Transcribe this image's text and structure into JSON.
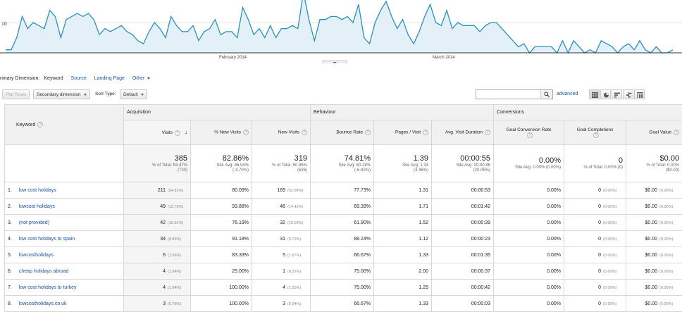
{
  "chart": {
    "y_label": "10",
    "months": [
      "February 2014",
      "March 2014"
    ],
    "series": [
      1,
      1,
      5,
      12,
      8,
      10,
      9,
      8,
      14,
      12,
      5,
      11,
      12,
      13,
      12,
      13,
      11,
      6,
      8,
      7,
      8,
      9,
      7,
      6,
      4,
      3,
      7,
      10,
      8,
      5,
      12,
      9,
      7,
      7,
      9,
      4,
      7,
      8,
      11,
      6,
      7,
      7,
      5,
      15,
      11,
      6,
      8,
      5,
      9,
      5,
      8,
      8,
      9,
      8,
      20,
      11,
      4,
      11,
      11,
      12,
      12,
      11,
      12,
      10,
      16,
      5,
      3,
      10,
      14,
      17,
      12,
      8,
      11,
      6,
      3,
      7,
      12,
      16,
      10,
      9,
      14,
      8,
      10,
      9,
      9,
      9,
      7,
      9,
      10,
      10,
      8,
      6,
      4,
      2,
      3,
      0,
      2,
      2,
      2,
      2,
      0,
      4,
      0,
      4,
      2,
      0,
      1,
      0,
      4,
      3,
      2,
      0,
      2,
      3,
      1,
      4,
      1,
      0,
      2,
      0,
      0,
      1
    ]
  },
  "dims": {
    "label": "rimary Dimension:",
    "selected": "Keyword",
    "links": [
      "Source",
      "Landing Page"
    ],
    "other": "Other"
  },
  "toolbar": {
    "plot_rows": "Plot Rows",
    "secondary": "Secondary dimension",
    "sort_type_label": "Sort Type:",
    "sort_type_value": "Default",
    "advanced": "advanced",
    "search_value": ""
  },
  "groups": {
    "acquisition": "Acquisition",
    "behaviour": "Behaviour",
    "conversions": "Conversions"
  },
  "columns": {
    "keyword": "Keyword",
    "visits": "Visits",
    "pct_new": "% New Visits",
    "new_visits": "New Visits",
    "bounce": "Bounce Rate",
    "pages": "Pages / Visit",
    "duration": "Avg. Visit Duration",
    "goal_rate": "Goal Conversion Rate",
    "goal_comp": "Goal Completions",
    "goal_value": "Goal Value"
  },
  "totals": {
    "visits": "385",
    "visits_sub1": "% of Total: 53.47%",
    "visits_sub2": "(720)",
    "pct_new": "82.86%",
    "pct_new_sub1": "Site Avg: 86.94%",
    "pct_new_sub2": "(-4.70%)",
    "new_visits": "319",
    "new_visits_sub1": "% of Total: 50.96%",
    "new_visits_sub2": "(626)",
    "bounce": "74.81%",
    "bounce_sub1": "Site Avg: 80.28%",
    "bounce_sub2": "(-6.82%)",
    "pages": "1.39",
    "pages_sub1": "Site Avg: 1.33",
    "pages_sub2": "(4.46%)",
    "duration": "00:00:55",
    "duration_sub1": "Site Avg: 00:00:46",
    "duration_sub2": "(20.05%)",
    "goal_rate": "0.00%",
    "goal_rate_sub1": "Site Avg: 0.00% (0.00%)",
    "goal_comp": "0",
    "goal_comp_sub1": "% of Total: 0.00% (0)",
    "goal_value": "$0.00",
    "goal_value_sub1": "% of Total: 0.00%",
    "goal_value_sub2": "($0.00)"
  },
  "rows": [
    {
      "n": "1.",
      "kw": "low cost holidays",
      "visits": "211",
      "visits_pct": "(54.81%)",
      "pct_new": "80.09%",
      "new": "169",
      "new_pct": "(52.98%)",
      "bounce": "77.73%",
      "pages": "1.31",
      "dur": "00:00:53",
      "rate": "0.00%",
      "comp": "0",
      "comp_pct": "(0.00%)",
      "value": "$0.00",
      "value_pct": "(0.00%)"
    },
    {
      "n": "2.",
      "kw": "lowcost holidays",
      "visits": "49",
      "visits_pct": "(12.73%)",
      "pct_new": "93.88%",
      "new": "46",
      "new_pct": "(14.42%)",
      "bounce": "69.39%",
      "pages": "1.71",
      "dur": "00:01:42",
      "rate": "0.00%",
      "comp": "0",
      "comp_pct": "(0.00%)",
      "value": "$0.00",
      "value_pct": "(0.00%)"
    },
    {
      "n": "3.",
      "kw": "(not provided)",
      "visits": "42",
      "visits_pct": "(10.91%)",
      "pct_new": "76.19%",
      "new": "32",
      "new_pct": "(10.03%)",
      "bounce": "61.90%",
      "pages": "1.52",
      "dur": "00:00:39",
      "rate": "0.00%",
      "comp": "0",
      "comp_pct": "(0.00%)",
      "value": "$0.00",
      "value_pct": "(0.00%)"
    },
    {
      "n": "4.",
      "kw": "low cost holidays to spain",
      "visits": "34",
      "visits_pct": "(8.83%)",
      "pct_new": "91.18%",
      "new": "31",
      "new_pct": "(9.72%)",
      "bounce": "88.24%",
      "pages": "1.12",
      "dur": "00:00:23",
      "rate": "0.00%",
      "comp": "0",
      "comp_pct": "(0.00%)",
      "value": "$0.00",
      "value_pct": "(0.00%)"
    },
    {
      "n": "5.",
      "kw": "lowcostholidays",
      "visits": "6",
      "visits_pct": "(1.56%)",
      "pct_new": "83.33%",
      "new": "5",
      "new_pct": "(1.57%)",
      "bounce": "66.67%",
      "pages": "1.33",
      "dur": "00:01:35",
      "rate": "0.00%",
      "comp": "0",
      "comp_pct": "(0.00%)",
      "value": "$0.00",
      "value_pct": "(0.00%)"
    },
    {
      "n": "6.",
      "kw": "cheap holidays abroad",
      "visits": "4",
      "visits_pct": "(1.04%)",
      "pct_new": "25.00%",
      "new": "1",
      "new_pct": "(0.31%)",
      "bounce": "75.00%",
      "pages": "2.00",
      "dur": "00:00:37",
      "rate": "0.00%",
      "comp": "0",
      "comp_pct": "(0.00%)",
      "value": "$0.00",
      "value_pct": "(0.00%)"
    },
    {
      "n": "7.",
      "kw": "low cost holidays to turkey",
      "visits": "4",
      "visits_pct": "(1.04%)",
      "pct_new": "100.00%",
      "new": "4",
      "new_pct": "(1.25%)",
      "bounce": "75.00%",
      "pages": "1.25",
      "dur": "00:00:42",
      "rate": "0.00%",
      "comp": "0",
      "comp_pct": "(0.00%)",
      "value": "$0.00",
      "value_pct": "(0.00%)"
    },
    {
      "n": "8.",
      "kw": "lowcostholidays.co.uk",
      "visits": "3",
      "visits_pct": "(0.78%)",
      "pct_new": "100.00%",
      "new": "3",
      "new_pct": "(0.94%)",
      "bounce": "66.67%",
      "pages": "1.33",
      "dur": "00:00:03",
      "rate": "0.00%",
      "comp": "0",
      "comp_pct": "(0.00%)",
      "value": "$0.00",
      "value_pct": "(0.00%)"
    }
  ],
  "colors": {
    "line": "#2a8fbd",
    "fill": "#e3f0f7",
    "link": "#1a52a5"
  }
}
